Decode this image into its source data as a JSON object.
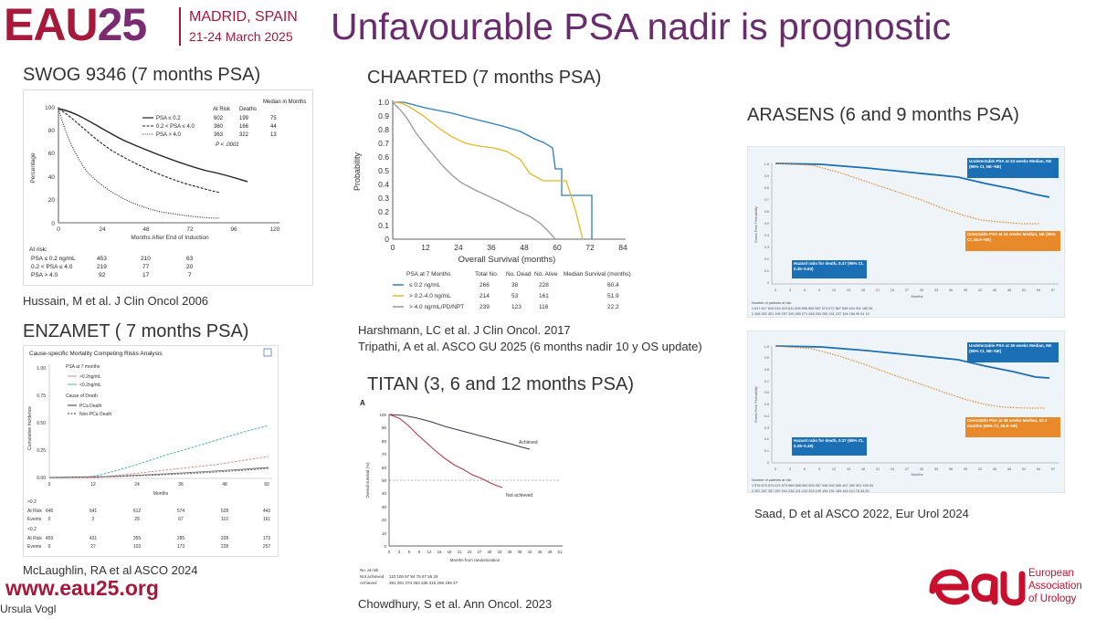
{
  "header": {
    "logo_eau": "EAU",
    "logo_year": "25",
    "city": "MADRID, SPAIN",
    "dates": "21-24 March 2025",
    "title": "Unfavourable PSA nadir is prognostic"
  },
  "footer": {
    "website": "www.eau25.org",
    "presenter": "Ursula Vogl",
    "org_line1": "European",
    "org_line2": "Association",
    "org_line3": "of Urology"
  },
  "swog": {
    "title": "SWOG 9346 (7 months PSA)",
    "citation": "Hussain, M et al. J Clin Oncol 2006",
    "ylabel": "Percentage",
    "xlabel": "Months After End of Induction",
    "yticks": [
      "100",
      "80",
      "60",
      "40",
      "20",
      "0"
    ],
    "xticks": [
      "0",
      "24",
      "48",
      "72",
      "96",
      "120"
    ],
    "legend_headers": [
      "At Risk",
      "Deaths",
      "Median in Months"
    ],
    "legend_rows": [
      {
        "label": "PSA ≤ 0.2",
        "atrisk": "602",
        "deaths": "199",
        "median": "75"
      },
      {
        "label": "0.2 < PSA ≤ 4.0",
        "atrisk": "360",
        "deaths": "166",
        "median": "44"
      },
      {
        "label": "PSA > 4.0",
        "atrisk": "363",
        "deaths": "322",
        "median": "13"
      }
    ],
    "pvalue": "P < .0001",
    "atrisk_title": "At risk:",
    "atrisk_rows": [
      {
        "label": "PSA ≤ 0.2 ng/mL",
        "v": [
          "453",
          "210",
          "63"
        ]
      },
      {
        "label": "0.2 < PSA ≤ 4.0",
        "v": [
          "219",
          "77",
          "20"
        ]
      },
      {
        "label": "PSA > 4.0",
        "v": [
          "92",
          "17",
          "7"
        ]
      }
    ]
  },
  "chaarted": {
    "title": "CHAARTED (7 months PSA)",
    "citation1": "Harshmann, LC et al. J Clin Oncol. 2017",
    "citation2": "Tripathi, A et al. ASCO GU 2025 (6 months nadir 10 y OS update)",
    "ylabel": "Probability",
    "xlabel": "Overall Survival (months)",
    "yticks": [
      "1.0",
      "0.9",
      "0.8",
      "0.7",
      "0.6",
      "0.5",
      "0.4",
      "0.3",
      "0.2",
      "0.1",
      "0"
    ],
    "xticks": [
      "0",
      "12",
      "24",
      "36",
      "48",
      "60",
      "72",
      "84"
    ],
    "table_headers": [
      "PSA at 7 Months",
      "Total No.",
      "No. Dead",
      "No. Alive",
      "Median Survival (months)"
    ],
    "table_rows": [
      {
        "label": "≤ 0.2 ng/mL",
        "total": "266",
        "dead": "38",
        "alive": "228",
        "median": "60.4",
        "color": "#2a7fc0"
      },
      {
        "label": "> 0.2-4.0 ng/mL",
        "total": "214",
        "dead": "53",
        "alive": "161",
        "median": "51.9",
        "color": "#e8b820"
      },
      {
        "label": "> 4.0 ng/mL/PD/NPT",
        "total": "239",
        "dead": "123",
        "alive": "116",
        "median": "22.2",
        "color": "#999999"
      }
    ]
  },
  "enzamet": {
    "title": "ENZAMET ( 7 months PSA)",
    "citation": "McLaughlin, RA et al ASCO 2024",
    "chart_title": "Cause-specific Mortality Competing Risks Analysis",
    "legend1_title": "PSA at 7 months",
    "legend1": [
      ">0.2ng/mL",
      "<0.2ng/mL"
    ],
    "legend2_title": "Cause of Death",
    "legend2": [
      "PCa Death",
      "Non-PCa Death"
    ],
    "ylabel": "Cumulative Incidence",
    "xlabel": "Months",
    "yticks": [
      "1.00",
      "0.75",
      "0.50",
      "0.25",
      "0.00"
    ],
    "xticks": [
      "0",
      "12",
      "24",
      "36",
      "48",
      "60"
    ],
    "risk_group1": ">0.2",
    "risk_group2": "<0.2",
    "risk_rows1": [
      {
        "label": "At Risk",
        "v": [
          "646",
          "641",
          "612",
          "574",
          "528",
          "443"
        ]
      },
      {
        "label": "Events",
        "v": [
          "0",
          "2",
          "29",
          "67",
          "110",
          "161"
        ]
      }
    ],
    "risk_rows2": [
      {
        "label": "At Risk",
        "v": [
          "459",
          "431",
          "355",
          "285",
          "228",
          "173"
        ]
      },
      {
        "label": "Events",
        "v": [
          "0",
          "27",
          "103",
          "173",
          "228",
          "257"
        ]
      }
    ]
  },
  "titan": {
    "title": "TITAN (3, 6 and 12 months PSA)",
    "citation": "Chowdhury, S et al. Ann Oncol. 2023",
    "panel_letter": "A",
    "ylabel": "Overall survival (%)",
    "xlabel": "Months from randomization",
    "yticks": [
      "100",
      "90",
      "80",
      "70",
      "60",
      "50",
      "40",
      "30",
      "20",
      "10",
      "0"
    ],
    "xticks": [
      "0",
      "3",
      "6",
      "9",
      "12",
      "15",
      "18",
      "21",
      "24",
      "27",
      "30",
      "33",
      "36",
      "39",
      "42",
      "45",
      "48",
      "51"
    ],
    "label_achieved": "Achieved",
    "label_not_achieved": "Not achieved",
    "risk_title": "No. at risk",
    "risk_rows": [
      {
        "label": "Not achieved",
        "v": "110  106  97  84  75  67  55  29"
      },
      {
        "label": "Achieved",
        "v": "391  391  373  353  336  315  295  196  47"
      }
    ]
  },
  "arasens": {
    "title": "ARASENS (6 and 9 months PSA)",
    "citation": "Saad, D et al ASCO 2022, Eur Urol 2024",
    "ylabel": "Event-Free Probability",
    "xlabel": "Months",
    "yticks": [
      "1.0",
      "0.9",
      "0.8",
      "0.7",
      "0.6",
      "0.5",
      "0.4",
      "0.3",
      "0.2",
      "0.1",
      "0"
    ],
    "xticks": [
      "0",
      "3",
      "6",
      "9",
      "12",
      "15",
      "18",
      "21",
      "24",
      "27",
      "30",
      "33",
      "36",
      "39",
      "42",
      "45",
      "48",
      "51",
      "54",
      "57"
    ],
    "top": {
      "box_blue": "Undetectable PSA at 24 weeks Median, NE (95% CI, NE–NE)",
      "box_orange": "Detectable PSA at 24 weeks Median, NE (95% CI, 36.9–NE)",
      "box_hr": "Hazard ratio for death, 0.47 (95% CI, 0.35–0.63)",
      "risk_title": "Number of patients at risk",
      "risk1": "1  617 617 615 614 613 611 605 596 590 587 574 572 567 545 434 311 180 54",
      "risk2": "2  306 302 301 299 297 290 280 271 266 260 252 241 237 154 156 90 51 10"
    },
    "bottom": {
      "box_blue": "Undetectable PSA at 36 weeks Median, NE (95% CI, NE–NE)",
      "box_orange": "Detectable PSA at 36 weeks Median, 52.3 months (95% CI, 39.5–NE)",
      "box_hr": "Hazard ratio for death, 0.37 (95% CI, 0.28–0.49)",
      "risk_title": "Number of patients at risk",
      "risk1": "1  576 575 574 574 573 569 568 563 559 557 546 542 540 497 382 301 155 54",
      "risk2": "2  257 257 257 257 241 234 221 212 203 199 194 191 183 143 110 76 34 20"
    }
  }
}
